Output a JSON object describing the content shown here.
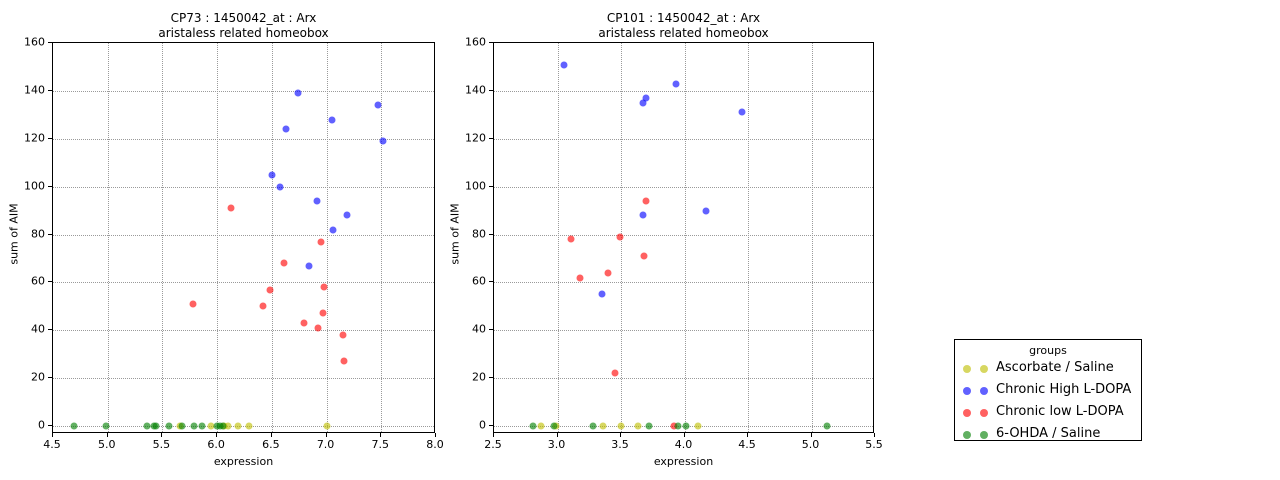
{
  "figure": {
    "background": "#ffffff",
    "grid_color": "#9a9a9a"
  },
  "legend": {
    "title": "groups",
    "entries": [
      {
        "label": "Ascorbate / Saline",
        "color": "#bfbf00"
      },
      {
        "label": "Chronic High L-DOPA",
        "color": "#0000ff"
      },
      {
        "label": "Chronic low L-DOPA",
        "color": "#ff0000"
      },
      {
        "label": "6-OHDA / Saline",
        "color": "#008000"
      }
    ]
  },
  "chart_data": [
    {
      "type": "scatter",
      "title": "CP73 : 1450042_at : Arx",
      "subtitle": "aristaless related homeobox",
      "xlabel": "expression",
      "ylabel": "sum of AIM",
      "xlim": [
        4.5,
        8.0
      ],
      "ylim": [
        0,
        160
      ],
      "grid": true,
      "legend_position": "outside-right",
      "xticks": [
        4.5,
        5.0,
        5.5,
        6.0,
        6.5,
        7.0,
        7.5,
        8.0
      ],
      "xtick_labels": [
        "4.5",
        "5.0",
        "5.5",
        "6.0",
        "6.5",
        "7.0",
        "7.5",
        "8.0"
      ],
      "yticks": [
        0,
        20,
        40,
        60,
        80,
        100,
        120,
        140,
        160
      ],
      "ytick_labels": [
        "0",
        "20",
        "40",
        "60",
        "80",
        "100",
        "120",
        "140",
        "160"
      ],
      "series": [
        {
          "name": "Ascorbate / Saline",
          "color": "#bfbf00",
          "points": [
            [
              5.66,
              0
            ],
            [
              5.94,
              0
            ],
            [
              6.06,
              0
            ],
            [
              6.1,
              0
            ],
            [
              6.19,
              0
            ],
            [
              6.29,
              0
            ],
            [
              7.0,
              0
            ]
          ]
        },
        {
          "name": "Chronic High L-DOPA",
          "color": "#0000ff",
          "points": [
            [
              6.5,
              105
            ],
            [
              6.57,
              100
            ],
            [
              6.63,
              124
            ],
            [
              6.74,
              139
            ],
            [
              6.84,
              67
            ],
            [
              6.91,
              94
            ],
            [
              7.05,
              128
            ],
            [
              7.06,
              82
            ],
            [
              7.19,
              88
            ],
            [
              7.47,
              134
            ],
            [
              7.52,
              119
            ]
          ]
        },
        {
          "name": "Chronic low L-DOPA",
          "color": "#ff0000",
          "points": [
            [
              5.78,
              51
            ],
            [
              6.13,
              91
            ],
            [
              6.42,
              50
            ],
            [
              6.48,
              57
            ],
            [
              6.61,
              68
            ],
            [
              6.79,
              43
            ],
            [
              6.92,
              41
            ],
            [
              6.95,
              77
            ],
            [
              6.97,
              47
            ],
            [
              6.98,
              58
            ],
            [
              7.15,
              38
            ],
            [
              7.16,
              27
            ]
          ]
        },
        {
          "name": "6-OHDA / Saline",
          "color": "#008000",
          "points": [
            [
              4.69,
              0
            ],
            [
              4.98,
              0
            ],
            [
              5.36,
              0
            ],
            [
              5.42,
              0
            ],
            [
              5.44,
              0
            ],
            [
              5.56,
              0
            ],
            [
              5.68,
              0
            ],
            [
              5.79,
              0
            ],
            [
              5.86,
              0
            ],
            [
              6.0,
              0
            ],
            [
              6.03,
              0
            ],
            [
              6.05,
              0
            ]
          ]
        }
      ]
    },
    {
      "type": "scatter",
      "title": "CP101 : 1450042_at : Arx",
      "subtitle": "aristaless related homeobox",
      "xlabel": "expression",
      "ylabel": "sum of AIM",
      "xlim": [
        2.5,
        5.5
      ],
      "ylim": [
        0,
        160
      ],
      "grid": true,
      "legend_position": "outside-right",
      "xticks": [
        2.5,
        3.0,
        3.5,
        4.0,
        4.5,
        5.0,
        5.5
      ],
      "xtick_labels": [
        "2.5",
        "3.0",
        "3.5",
        "4.0",
        "4.5",
        "5.0",
        "5.5"
      ],
      "yticks": [
        0,
        20,
        40,
        60,
        80,
        100,
        120,
        140,
        160
      ],
      "ytick_labels": [
        "0",
        "20",
        "40",
        "60",
        "80",
        "100",
        "120",
        "140",
        "160"
      ],
      "series": [
        {
          "name": "Ascorbate / Saline",
          "color": "#bfbf00",
          "points": [
            [
              2.87,
              0
            ],
            [
              2.99,
              0
            ],
            [
              3.36,
              0
            ],
            [
              3.5,
              0
            ],
            [
              3.63,
              0
            ],
            [
              4.11,
              0
            ]
          ]
        },
        {
          "name": "Chronic High L-DOPA",
          "color": "#0000ff",
          "points": [
            [
              3.05,
              151
            ],
            [
              3.35,
              55
            ],
            [
              3.67,
              135
            ],
            [
              3.7,
              137
            ],
            [
              3.67,
              88
            ],
            [
              3.93,
              143
            ],
            [
              4.17,
              90
            ],
            [
              4.45,
              131
            ]
          ]
        },
        {
          "name": "Chronic low L-DOPA",
          "color": "#ff0000",
          "points": [
            [
              3.11,
              78
            ],
            [
              3.18,
              62
            ],
            [
              3.4,
              64
            ],
            [
              3.45,
              22
            ],
            [
              3.49,
              79
            ],
            [
              3.68,
              71
            ],
            [
              3.7,
              94
            ],
            [
              3.92,
              0
            ]
          ]
        },
        {
          "name": "6-OHDA / Saline",
          "color": "#008000",
          "points": [
            [
              2.81,
              0
            ],
            [
              2.97,
              0
            ],
            [
              3.28,
              0
            ],
            [
              3.72,
              0
            ],
            [
              3.95,
              0
            ],
            [
              4.01,
              0
            ],
            [
              5.12,
              0
            ]
          ]
        }
      ]
    }
  ]
}
